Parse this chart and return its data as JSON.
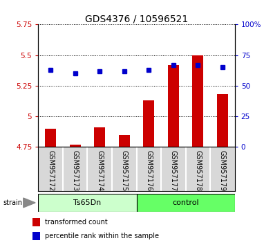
{
  "title": "GDS4376 / 10596521",
  "samples": [
    "GSM957172",
    "GSM957173",
    "GSM957174",
    "GSM957175",
    "GSM957176",
    "GSM957177",
    "GSM957178",
    "GSM957179"
  ],
  "red_values": [
    4.9,
    4.77,
    4.91,
    4.85,
    5.13,
    5.42,
    5.5,
    5.18
  ],
  "blue_values_pct": [
    63,
    60,
    62,
    62,
    63,
    67,
    67,
    65
  ],
  "ylim_left": [
    4.75,
    5.75
  ],
  "ylim_right": [
    0,
    100
  ],
  "yticks_left": [
    4.75,
    5.0,
    5.25,
    5.5,
    5.75
  ],
  "yticks_right": [
    0,
    25,
    50,
    75,
    100
  ],
  "ytick_labels_left": [
    "4.75",
    "5",
    "5.25",
    "5.5",
    "5.75"
  ],
  "ytick_labels_right": [
    "0",
    "25",
    "50",
    "75",
    "100%"
  ],
  "red_color": "#cc0000",
  "blue_color": "#0000cc",
  "bar_bottom": 4.75,
  "ts65dn_color": "#ccffcc",
  "control_color": "#66ff66",
  "sample_bg_color": "#d8d8d8",
  "title_fontsize": 10,
  "tick_fontsize": 7.5,
  "label_fontsize": 7,
  "group_fontsize": 8,
  "left_group_label": "Ts65Dn",
  "right_group_label": "control",
  "strain_label": "strain",
  "legend_red": "transformed count",
  "legend_blue": "percentile rank within the sample"
}
